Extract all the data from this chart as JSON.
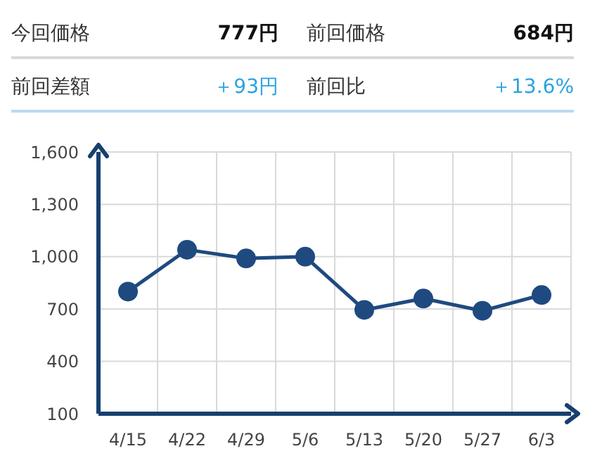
{
  "chart_data": {
    "type": "line",
    "annotations": [
      "今回価格",
      "777円",
      "前回価格",
      "684円",
      "前回差額",
      "＋93円",
      "前回比",
      "＋13.6%"
    ],
    "categories": [
      "4/15",
      "4/22",
      "4/29",
      "5/6",
      "5/13",
      "5/20",
      "5/27",
      "6/3"
    ],
    "series": [
      {
        "color": "#1f4a80",
        "values": [
          800,
          1040,
          990,
          1000,
          695,
          760,
          690,
          780
        ]
      }
    ],
    "ylim": [
      100,
      1600
    ],
    "yticks": [
      100,
      400,
      700,
      {
        "value": 1000,
        "label": "1,000"
      },
      {
        "value": 1300,
        "label": "1,300"
      },
      {
        "value": 1600,
        "label": "1,600"
      }
    ],
    "grid": true,
    "marker": "circle",
    "line_style": "solid"
  }
}
